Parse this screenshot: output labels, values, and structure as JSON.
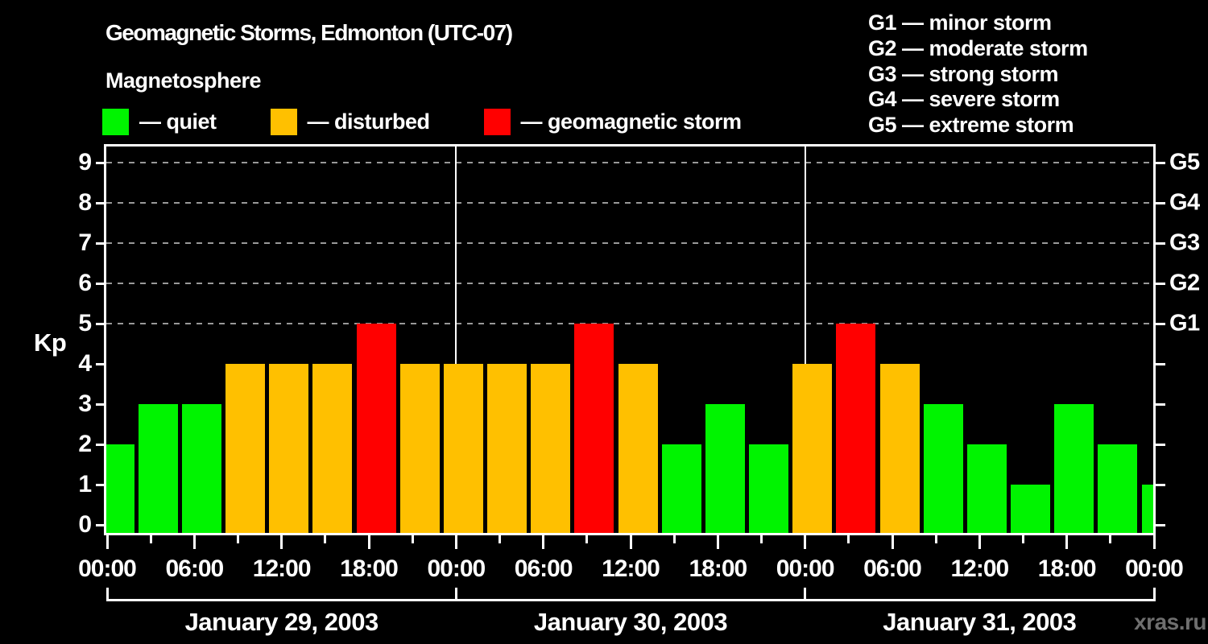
{
  "title": "Geomagnetic Storms, Edmonton (UTC-07)",
  "subtitle": "Magnetosphere",
  "watermark": "xras.ru",
  "legend": {
    "items": [
      {
        "key": "quiet",
        "label": "— quiet",
        "color": "#00F400"
      },
      {
        "key": "disturbed",
        "label": "— disturbed",
        "color": "#FFC000"
      },
      {
        "key": "storm",
        "label": "— geomagnetic storm",
        "color": "#FF0000"
      }
    ]
  },
  "storm_scale": {
    "items": [
      "G1 — minor storm",
      "G2 — moderate storm",
      "G3 — strong storm",
      "G4 — severe storm",
      "G5 — extreme storm"
    ]
  },
  "chart_data": {
    "type": "bar",
    "title": "Geomagnetic Storms, Edmonton (UTC-07)",
    "ylabel": "Kp",
    "ylim": [
      0,
      9
    ],
    "y_ticks": [
      0,
      1,
      2,
      3,
      4,
      5,
      6,
      7,
      8,
      9
    ],
    "gridlines_at_kp": [
      5,
      6,
      7,
      8,
      9
    ],
    "grid": "dashed horizontal at G-storm levels only",
    "legend_position": "top",
    "right_axis": [
      {
        "kp": 5,
        "label": "G1"
      },
      {
        "kp": 6,
        "label": "G2"
      },
      {
        "kp": 7,
        "label": "G3"
      },
      {
        "kp": 8,
        "label": "G4"
      },
      {
        "kp": 9,
        "label": "G5"
      }
    ],
    "x_axis": {
      "tick_interval_hours": 3,
      "label_interval_hours": 6,
      "total_hours": 72,
      "labels": [
        "00:00",
        "06:00",
        "12:00",
        "18:00",
        "00:00",
        "06:00",
        "12:00",
        "18:00",
        "00:00",
        "06:00",
        "12:00",
        "18:00",
        "00:00"
      ],
      "day_labels": [
        "January 29, 2003",
        "January 30, 2003",
        "January 31, 2003"
      ],
      "day_boundary_hours": [
        24,
        48
      ]
    },
    "state_colors": {
      "quiet": "#00F400",
      "disturbed": "#FFC000",
      "storm": "#FF0000"
    },
    "series": [
      {
        "name": "Kp index",
        "interval_hours": 3,
        "points": [
          {
            "hour": 0,
            "kp": 2,
            "state": "quiet"
          },
          {
            "hour": 3,
            "kp": 3,
            "state": "quiet"
          },
          {
            "hour": 6,
            "kp": 3,
            "state": "quiet"
          },
          {
            "hour": 9,
            "kp": 4,
            "state": "disturbed"
          },
          {
            "hour": 12,
            "kp": 4,
            "state": "disturbed"
          },
          {
            "hour": 15,
            "kp": 4,
            "state": "disturbed"
          },
          {
            "hour": 18,
            "kp": 5,
            "state": "storm"
          },
          {
            "hour": 21,
            "kp": 4,
            "state": "disturbed"
          },
          {
            "hour": 24,
            "kp": 4,
            "state": "disturbed"
          },
          {
            "hour": 27,
            "kp": 4,
            "state": "disturbed"
          },
          {
            "hour": 30,
            "kp": 4,
            "state": "disturbed"
          },
          {
            "hour": 33,
            "kp": 5,
            "state": "storm"
          },
          {
            "hour": 36,
            "kp": 4,
            "state": "disturbed"
          },
          {
            "hour": 39,
            "kp": 2,
            "state": "quiet"
          },
          {
            "hour": 42,
            "kp": 3,
            "state": "quiet"
          },
          {
            "hour": 45,
            "kp": 2,
            "state": "quiet"
          },
          {
            "hour": 48,
            "kp": 4,
            "state": "disturbed"
          },
          {
            "hour": 51,
            "kp": 5,
            "state": "storm"
          },
          {
            "hour": 54,
            "kp": 4,
            "state": "disturbed"
          },
          {
            "hour": 57,
            "kp": 3,
            "state": "quiet"
          },
          {
            "hour": 60,
            "kp": 2,
            "state": "quiet"
          },
          {
            "hour": 63,
            "kp": 1,
            "state": "quiet"
          },
          {
            "hour": 66,
            "kp": 3,
            "state": "quiet"
          },
          {
            "hour": 69,
            "kp": 2,
            "state": "quiet"
          },
          {
            "hour": 72,
            "kp": 1,
            "state": "quiet"
          }
        ]
      }
    ]
  }
}
